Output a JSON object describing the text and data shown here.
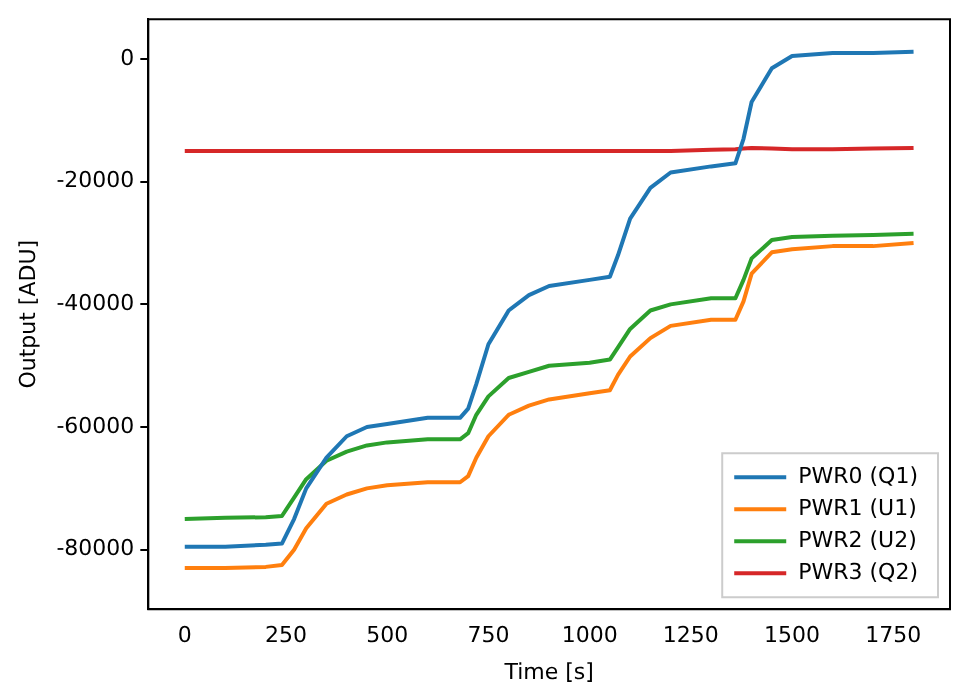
{
  "chart_data": {
    "type": "line",
    "xlabel": "Time [s]",
    "ylabel": "Output [ADU]",
    "x": [
      0,
      100,
      200,
      240,
      270,
      300,
      350,
      400,
      450,
      500,
      600,
      680,
      700,
      720,
      750,
      800,
      850,
      900,
      1000,
      1050,
      1070,
      1100,
      1150,
      1200,
      1300,
      1360,
      1380,
      1400,
      1450,
      1500,
      1600,
      1700,
      1800
    ],
    "series": [
      {
        "name": "PWR0 (Q1)",
        "color": "#1f77b4",
        "values": [
          -79500,
          -79500,
          -79200,
          -79000,
          -75000,
          -70000,
          -65000,
          -61500,
          -60000,
          -59500,
          -58500,
          -58500,
          -57000,
          -53000,
          -46500,
          -41000,
          -38500,
          -37000,
          -36000,
          -35500,
          -32000,
          -26000,
          -21000,
          -18500,
          -17500,
          -17000,
          -13000,
          -7000,
          -1500,
          500,
          1000,
          1000,
          1200
        ]
      },
      {
        "name": "PWR1 (U1)",
        "color": "#ff7f0e",
        "values": [
          -83000,
          -83000,
          -82800,
          -82500,
          -80000,
          -76500,
          -72500,
          -71000,
          -70000,
          -69500,
          -69000,
          -69000,
          -68000,
          -65000,
          -61500,
          -58000,
          -56500,
          -55500,
          -54500,
          -54000,
          -51500,
          -48500,
          -45500,
          -43500,
          -42500,
          -42500,
          -39500,
          -35000,
          -31500,
          -31000,
          -30500,
          -30500,
          -30000
        ]
      },
      {
        "name": "PWR2 (U2)",
        "color": "#2ca02c",
        "values": [
          -75000,
          -74800,
          -74700,
          -74500,
          -71500,
          -68500,
          -65500,
          -64000,
          -63000,
          -62500,
          -62000,
          -62000,
          -61000,
          -58000,
          -55000,
          -52000,
          -51000,
          -50000,
          -49500,
          -49000,
          -47000,
          -44000,
          -41000,
          -40000,
          -39000,
          -39000,
          -36000,
          -32500,
          -29500,
          -29000,
          -28800,
          -28700,
          -28500
        ]
      },
      {
        "name": "PWR3 (Q2)",
        "color": "#d62728",
        "values": [
          -15000,
          -15000,
          -15000,
          -15000,
          -15000,
          -15000,
          -15000,
          -15000,
          -15000,
          -15000,
          -15000,
          -15000,
          -15000,
          -15000,
          -15000,
          -15000,
          -15000,
          -15000,
          -15000,
          -15000,
          -15000,
          -15000,
          -15000,
          -15000,
          -14800,
          -14700,
          -14600,
          -14500,
          -14600,
          -14700,
          -14700,
          -14600,
          -14500
        ]
      }
    ],
    "xlim": [
      -90,
      1890
    ],
    "ylim": [
      -89700,
      6500
    ],
    "xticks": [
      0,
      250,
      500,
      750,
      1000,
      1250,
      1500,
      1750
    ],
    "yticks": [
      -80000,
      -60000,
      -40000,
      -20000,
      0
    ],
    "grid": false,
    "legend": "bottom right",
    "marker": "none",
    "line_style": "solid"
  }
}
